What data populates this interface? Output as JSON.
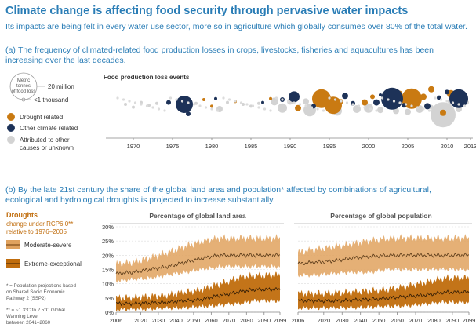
{
  "header": {
    "title": "Climate change is affecting food security through pervasive water impacts",
    "subtitle": "Its impacts are being felt in every water use sector, more so in agriculture which globally consumes over 80% of the total water."
  },
  "panel_a": {
    "prefix": "(a)",
    "text": "The frequency of climated-related food production losses in crops, livestocks, fisheries and aquacultures has been increasing over the last decades.",
    "size_legend": {
      "title": "Metric tonnes of food loss",
      "big": "20 million",
      "small": "<1 thousand"
    },
    "legend": [
      {
        "label": "Drought related",
        "color": "#c97a12"
      },
      {
        "label": "Other climate related",
        "color": "#1d3258"
      },
      {
        "label": "Attributed to other causes or unknown",
        "color": "#d3d3d3"
      }
    ]
  },
  "panel_b": {
    "prefix": "(b)",
    "text": "By the late 21st century the share of the global land area and population* affected by combinations of agricultural, ecological and hydrological droughts is projected to increase substantially.",
    "legend_title": "Droughts",
    "legend_subtitle": "change under RCP6.0** relative to 1976–2005",
    "legend_items": [
      {
        "label": "Moderate-severe",
        "color": "#e0a25e"
      },
      {
        "label": "Extreme-exceptional",
        "color": "#c06d0d"
      }
    ],
    "footnote1": "* = Population projections based on Shared Socio Economic Pathway 2 (SSP2)",
    "footnote2": "** = ~1.3°C to 2.5°C Global Warming Level between 2041–2060"
  },
  "chart_data": [
    {
      "type": "scatter",
      "title": "Food production loss events",
      "encoding": "bubble",
      "x_ticks": [
        "1970",
        "1975",
        "1980",
        "1985",
        "1990",
        "1995",
        "2000",
        "2005",
        "2010",
        "2013"
      ],
      "xlim": [
        1967.5,
        2013
      ],
      "series": [
        {
          "name": "Drought related",
          "color": "#c97a12",
          "points": [
            {
              "x": 1979,
              "y": 0.5,
              "r": 2
            },
            {
              "x": 1980,
              "y": -0.2,
              "r": 2
            },
            {
              "x": 1983,
              "y": 0.3,
              "r": 2
            },
            {
              "x": 1987.5,
              "y": 0.6,
              "r": 2
            },
            {
              "x": 1991,
              "y": -0.4,
              "r": 4
            },
            {
              "x": 1994,
              "y": 0.6,
              "r": 12
            },
            {
              "x": 1995.5,
              "y": -0.1,
              "r": 11
            },
            {
              "x": 1996.5,
              "y": 0.3,
              "r": 3
            },
            {
              "x": 1999.5,
              "y": 0.2,
              "r": 4
            },
            {
              "x": 2000.5,
              "y": 0.8,
              "r": 3
            },
            {
              "x": 2004,
              "y": 1.2,
              "r": 3
            },
            {
              "x": 2005.5,
              "y": 0.6,
              "r": 13
            },
            {
              "x": 2007,
              "y": 0.8,
              "r": 4
            },
            {
              "x": 2008,
              "y": 1.6,
              "r": 4
            },
            {
              "x": 2009.5,
              "y": -0.9,
              "r": 4
            },
            {
              "x": 2010.5,
              "y": 1.1,
              "r": 5
            }
          ]
        },
        {
          "name": "Other climate related",
          "color": "#1d3258",
          "points": [
            {
              "x": 1974.5,
              "y": 0.2,
              "r": 3
            },
            {
              "x": 1976.5,
              "y": 0,
              "r": 11
            },
            {
              "x": 1977,
              "y": -1.0,
              "r": 3
            },
            {
              "x": 1980.5,
              "y": 0.6,
              "r": 2
            },
            {
              "x": 1986.5,
              "y": 0.2,
              "r": 2
            },
            {
              "x": 1989,
              "y": 0.5,
              "r": 3
            },
            {
              "x": 1990.5,
              "y": 0.8,
              "r": 7
            },
            {
              "x": 1993,
              "y": -0.2,
              "r": 3
            },
            {
              "x": 1997,
              "y": 0.9,
              "r": 4
            },
            {
              "x": 1998,
              "y": 0.1,
              "r": 3
            },
            {
              "x": 2001,
              "y": 0.2,
              "r": 4
            },
            {
              "x": 2001.5,
              "y": 1.0,
              "r": 2
            },
            {
              "x": 2003,
              "y": 0.6,
              "r": 14
            },
            {
              "x": 2004.5,
              "y": -0.1,
              "r": 3
            },
            {
              "x": 2007.5,
              "y": -0.2,
              "r": 4
            },
            {
              "x": 2009,
              "y": 0.7,
              "r": 3
            },
            {
              "x": 2010,
              "y": 1.3,
              "r": 3
            },
            {
              "x": 2011.5,
              "y": 0.6,
              "r": 12
            }
          ]
        },
        {
          "name": "Attributed to other causes or unknown",
          "color": "#d3d3d3",
          "points": [
            {
              "x": 1969,
              "y": 0,
              "r": 2
            },
            {
              "x": 1970,
              "y": -0.3,
              "r": 2
            },
            {
              "x": 1971,
              "y": 0.2,
              "r": 2
            },
            {
              "x": 1972,
              "y": -0.1,
              "r": 2
            },
            {
              "x": 1973,
              "y": 0.1,
              "r": 2
            },
            {
              "x": 1978,
              "y": 0.1,
              "r": 2
            },
            {
              "x": 1981,
              "y": -0.5,
              "r": 4
            },
            {
              "x": 1982,
              "y": 0.2,
              "r": 2
            },
            {
              "x": 1984,
              "y": 0,
              "r": 2
            },
            {
              "x": 1985,
              "y": -0.2,
              "r": 2
            },
            {
              "x": 1986,
              "y": 0.1,
              "r": 2
            },
            {
              "x": 1988,
              "y": 0.3,
              "r": 5
            },
            {
              "x": 1989,
              "y": -0.4,
              "r": 6
            },
            {
              "x": 1990,
              "y": 0.3,
              "r": 4
            },
            {
              "x": 1992,
              "y": 0.3,
              "r": 4
            },
            {
              "x": 1992.5,
              "y": -0.6,
              "r": 8
            },
            {
              "x": 1996,
              "y": -0.7,
              "r": 6
            },
            {
              "x": 1998.5,
              "y": -0.5,
              "r": 5
            },
            {
              "x": 2000,
              "y": -0.4,
              "r": 6
            },
            {
              "x": 2001.5,
              "y": -0.6,
              "r": 4
            },
            {
              "x": 2003.5,
              "y": -0.7,
              "r": 4
            },
            {
              "x": 2005,
              "y": -0.8,
              "r": 4
            },
            {
              "x": 2006.5,
              "y": -0.5,
              "r": 5
            },
            {
              "x": 2008,
              "y": -0.3,
              "r": 3
            },
            {
              "x": 2009.5,
              "y": -1.1,
              "r": 16
            },
            {
              "x": 2010.5,
              "y": 0.3,
              "r": 4
            },
            {
              "x": 2011.5,
              "y": -0.5,
              "r": 4
            },
            {
              "x": 2012.5,
              "y": 0.2,
              "r": 3
            }
          ]
        }
      ]
    },
    {
      "type": "area",
      "title": "Percentage of global land area",
      "x_ticks": [
        "2006",
        "2020",
        "2030",
        "2040",
        "2050",
        "2060",
        "2070",
        "2080",
        "2090",
        "2099"
      ],
      "y_ticks": [
        "0%",
        "5%",
        "10%",
        "15%",
        "20%",
        "25%",
        "30%"
      ],
      "xlim": [
        2006,
        2099
      ],
      "ylim": [
        0,
        30
      ],
      "series": [
        {
          "name": "Moderate-severe",
          "color": "#e0a25e",
          "years": [
            2006,
            2015,
            2025,
            2035,
            2045,
            2055,
            2065,
            2075,
            2085,
            2099
          ],
          "median": [
            13.5,
            14,
            15,
            16,
            17.5,
            19,
            20,
            20,
            20,
            20
          ],
          "low": [
            11,
            11.5,
            12,
            13,
            14,
            15,
            16,
            16,
            16,
            16
          ],
          "high": [
            17,
            17.5,
            19,
            21,
            23,
            25,
            26,
            26,
            26,
            26
          ]
        },
        {
          "name": "Extreme-exceptional",
          "color": "#c06d0d",
          "years": [
            2006,
            2015,
            2025,
            2035,
            2045,
            2055,
            2065,
            2075,
            2085,
            2099
          ],
          "median": [
            3,
            3,
            3.2,
            3.5,
            4,
            4.5,
            6,
            7,
            8,
            8
          ],
          "low": [
            1,
            1,
            1.2,
            1.4,
            1.6,
            2,
            2.5,
            3,
            4,
            4
          ],
          "high": [
            5,
            5.2,
            5.5,
            6,
            7,
            8,
            10,
            12,
            13,
            13
          ]
        }
      ]
    },
    {
      "type": "area",
      "title": "Percentage of global population",
      "x_ticks": [
        "2006",
        "2020",
        "2030",
        "2040",
        "2050",
        "2060",
        "2070",
        "2080",
        "2090",
        "2099"
      ],
      "xlim": [
        2006,
        2099
      ],
      "ylim": [
        0,
        30
      ],
      "series": [
        {
          "name": "Moderate-severe",
          "color": "#e0a25e",
          "years": [
            2006,
            2015,
            2025,
            2035,
            2045,
            2055,
            2065,
            2075,
            2085,
            2099
          ],
          "median": [
            17,
            17.5,
            18,
            19,
            19.5,
            20,
            20,
            20,
            20,
            20
          ],
          "low": [
            13,
            13,
            13.5,
            14,
            14,
            15,
            15,
            15,
            15,
            15
          ],
          "high": [
            21,
            22,
            23,
            24,
            25,
            26,
            26,
            26,
            26,
            26
          ]
        },
        {
          "name": "Extreme-exceptional",
          "color": "#c06d0d",
          "years": [
            2006,
            2015,
            2025,
            2035,
            2045,
            2055,
            2065,
            2075,
            2085,
            2099
          ],
          "median": [
            4,
            4,
            4,
            4.2,
            4.5,
            5,
            5.5,
            6,
            7,
            7
          ],
          "low": [
            1.5,
            1.5,
            1.5,
            1.6,
            1.8,
            2,
            2.3,
            2.8,
            3.5,
            3.5
          ],
          "high": [
            6.5,
            6.5,
            6.8,
            7,
            7.5,
            8,
            9,
            10.5,
            12,
            12
          ]
        }
      ]
    }
  ]
}
